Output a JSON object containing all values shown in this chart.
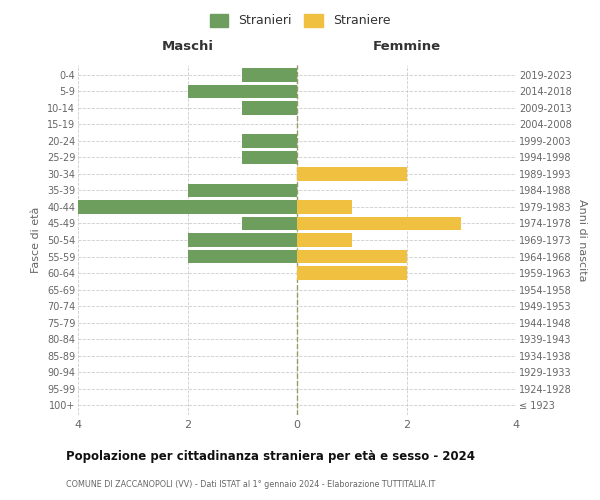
{
  "age_groups": [
    "100+",
    "95-99",
    "90-94",
    "85-89",
    "80-84",
    "75-79",
    "70-74",
    "65-69",
    "60-64",
    "55-59",
    "50-54",
    "45-49",
    "40-44",
    "35-39",
    "30-34",
    "25-29",
    "20-24",
    "15-19",
    "10-14",
    "5-9",
    "0-4"
  ],
  "birth_years": [
    "≤ 1923",
    "1924-1928",
    "1929-1933",
    "1934-1938",
    "1939-1943",
    "1944-1948",
    "1949-1953",
    "1954-1958",
    "1959-1963",
    "1964-1968",
    "1969-1973",
    "1974-1978",
    "1979-1983",
    "1984-1988",
    "1989-1993",
    "1994-1998",
    "1999-2003",
    "2004-2008",
    "2009-2013",
    "2014-2018",
    "2019-2023"
  ],
  "males": [
    0,
    0,
    0,
    0,
    0,
    0,
    0,
    0,
    0,
    2,
    2,
    1,
    4,
    2,
    0,
    1,
    1,
    0,
    1,
    2,
    1
  ],
  "females": [
    0,
    0,
    0,
    0,
    0,
    0,
    0,
    0,
    2,
    2,
    1,
    3,
    1,
    0,
    2,
    0,
    0,
    0,
    0,
    0,
    0
  ],
  "male_color": "#6d9e5e",
  "female_color": "#f0c040",
  "title_main": "Popolazione per cittadinanza straniera per età e sesso - 2024",
  "title_sub": "COMUNE DI ZACCANOPOLI (VV) - Dati ISTAT al 1° gennaio 2024 - Elaborazione TUTTITALIA.IT",
  "legend_male": "Stranieri",
  "legend_female": "Straniere",
  "header_left": "Maschi",
  "header_right": "Femmine",
  "ylabel_left": "Fasce di età",
  "ylabel_right": "Anni di nascita",
  "xlim": 4,
  "bar_height": 0.82,
  "bg_color": "#ffffff",
  "grid_color": "#cccccc",
  "text_color": "#666666",
  "title_color": "#111111",
  "header_color": "#333333",
  "center_line_color": "#999966"
}
